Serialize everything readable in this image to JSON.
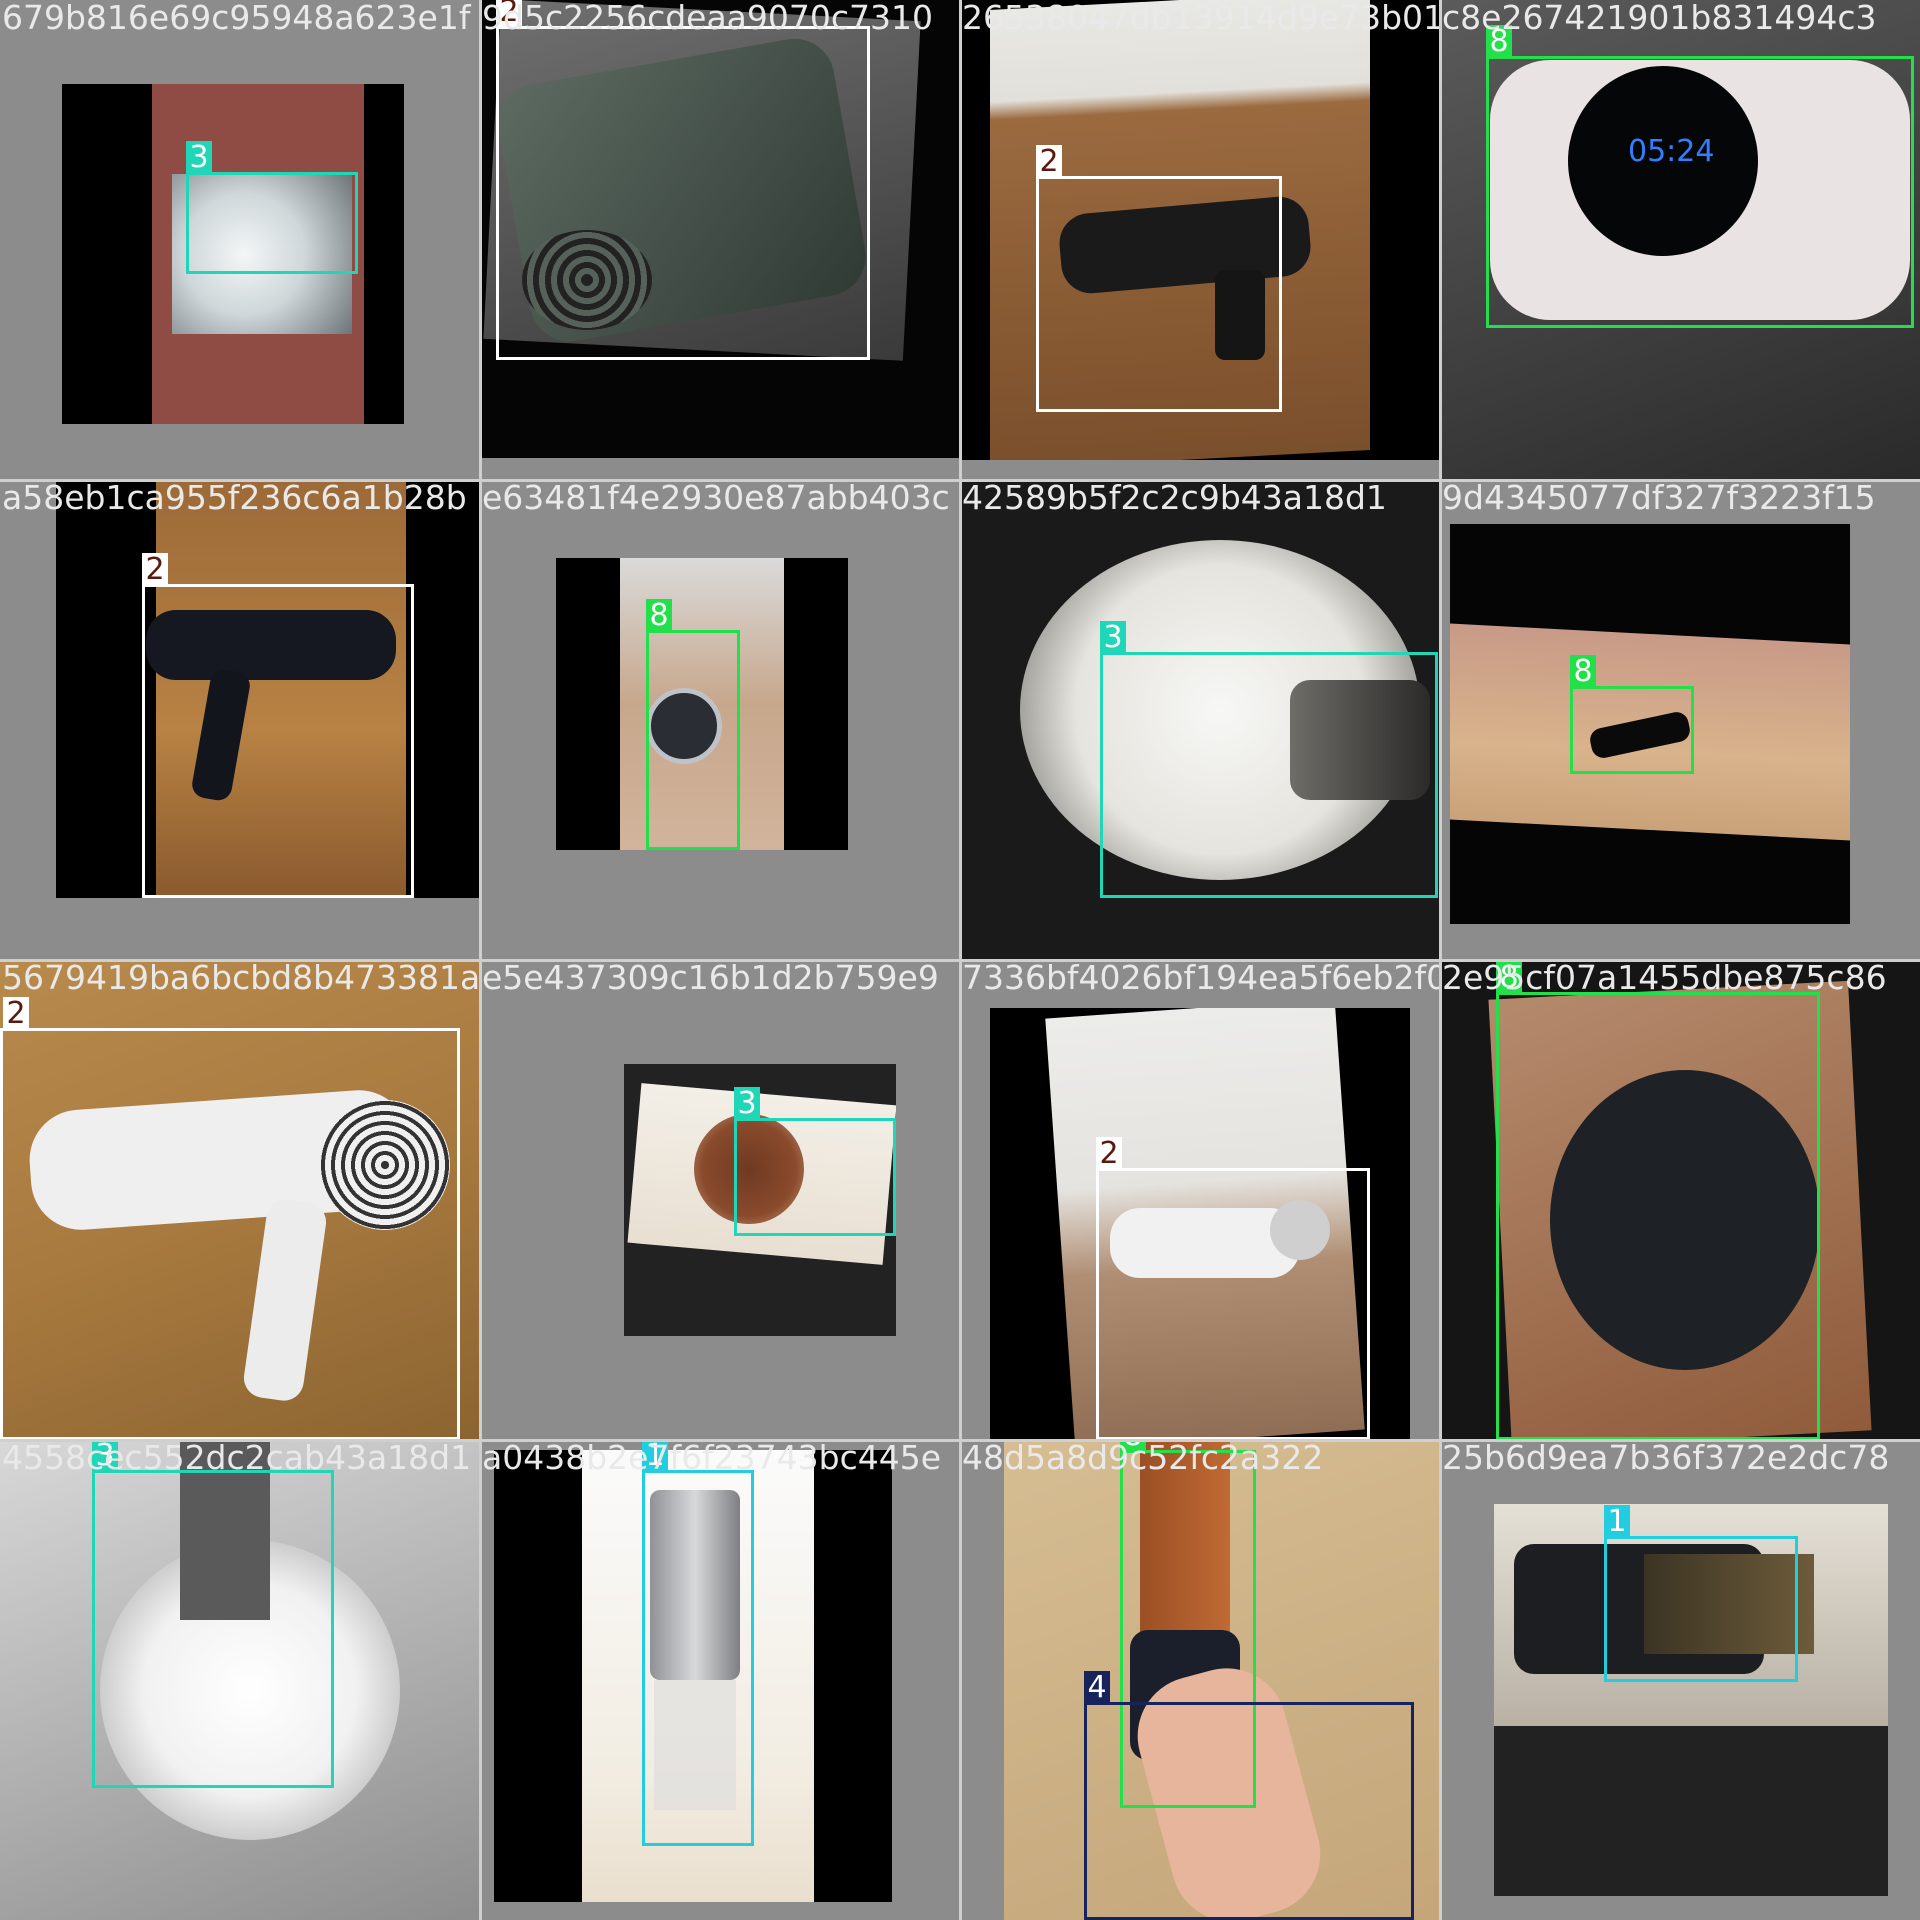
{
  "tiles": [
    {
      "caption": "679b816e69c95948a623e1f",
      "label": "3"
    },
    {
      "caption": "9d5c2256cdeaa9070c7310",
      "label": "2"
    },
    {
      "caption": "26538047db13914d9e73b01",
      "label": "2"
    },
    {
      "caption": "c8e267421901b831494c3",
      "label": "8"
    },
    {
      "caption": "a58eb1ca955f236c6a1b28b",
      "label": "2"
    },
    {
      "caption": "e63481f4e2930e87abb403c",
      "label": "8"
    },
    {
      "caption": "42589b5f2c2c9b43a18d1",
      "label": "3"
    },
    {
      "caption": "9d4345077df327f3223f15",
      "label": "8"
    },
    {
      "caption": "5679419ba6bcbd8b473381a",
      "label": "2"
    },
    {
      "caption": "e5e437309c16b1d2b759e9",
      "label": "3"
    },
    {
      "caption": "7336bf4026bf194ea5f6eb2f0",
      "label": "2"
    },
    {
      "caption": "2e95cf07a1455dbe875c86",
      "label": "8"
    },
    {
      "caption": "4558cec552dc2cab43a18d1",
      "label": "3"
    },
    {
      "caption": "a0438b2e7f6f23743bc445e",
      "label": "1"
    },
    {
      "caption": "48d5a8d9c52fc2a322",
      "label": "8",
      "label2": "4"
    },
    {
      "caption": "25b6d9ea7b36f372e2dc78",
      "label": "1"
    }
  ],
  "colors": {
    "class_1": "#23cde0",
    "class_2": "#ffffff",
    "class_3": "#1fd6b8",
    "class_4": "#16235c",
    "class_8": "#21e04a"
  }
}
